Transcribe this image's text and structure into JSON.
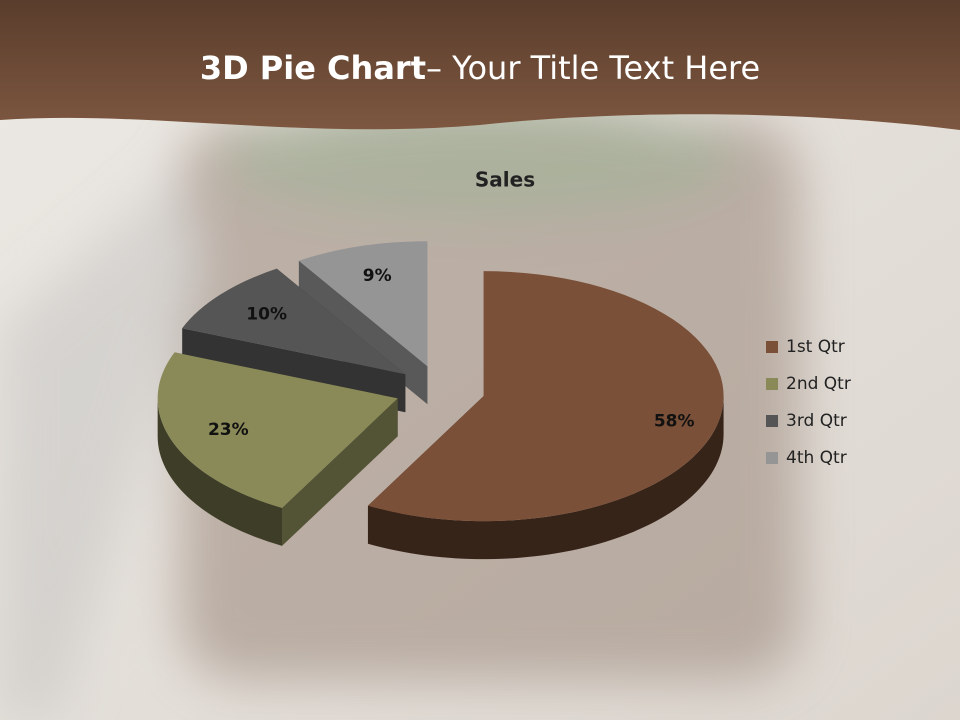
{
  "slide": {
    "title_bold": "3D Pie Chart",
    "title_rest": "– Your Title Text Here"
  },
  "chart_data": {
    "type": "pie",
    "title": "Sales",
    "categories": [
      "1st Qtr",
      "2nd Qtr",
      "3rd Qtr",
      "4th Qtr"
    ],
    "values": [
      58,
      23,
      10,
      9
    ],
    "value_labels": [
      "58%",
      "23%",
      "10%",
      "9%"
    ],
    "colors": [
      "#7b5038",
      "#8a8a58",
      "#555555",
      "#959595"
    ],
    "legend": "right"
  }
}
